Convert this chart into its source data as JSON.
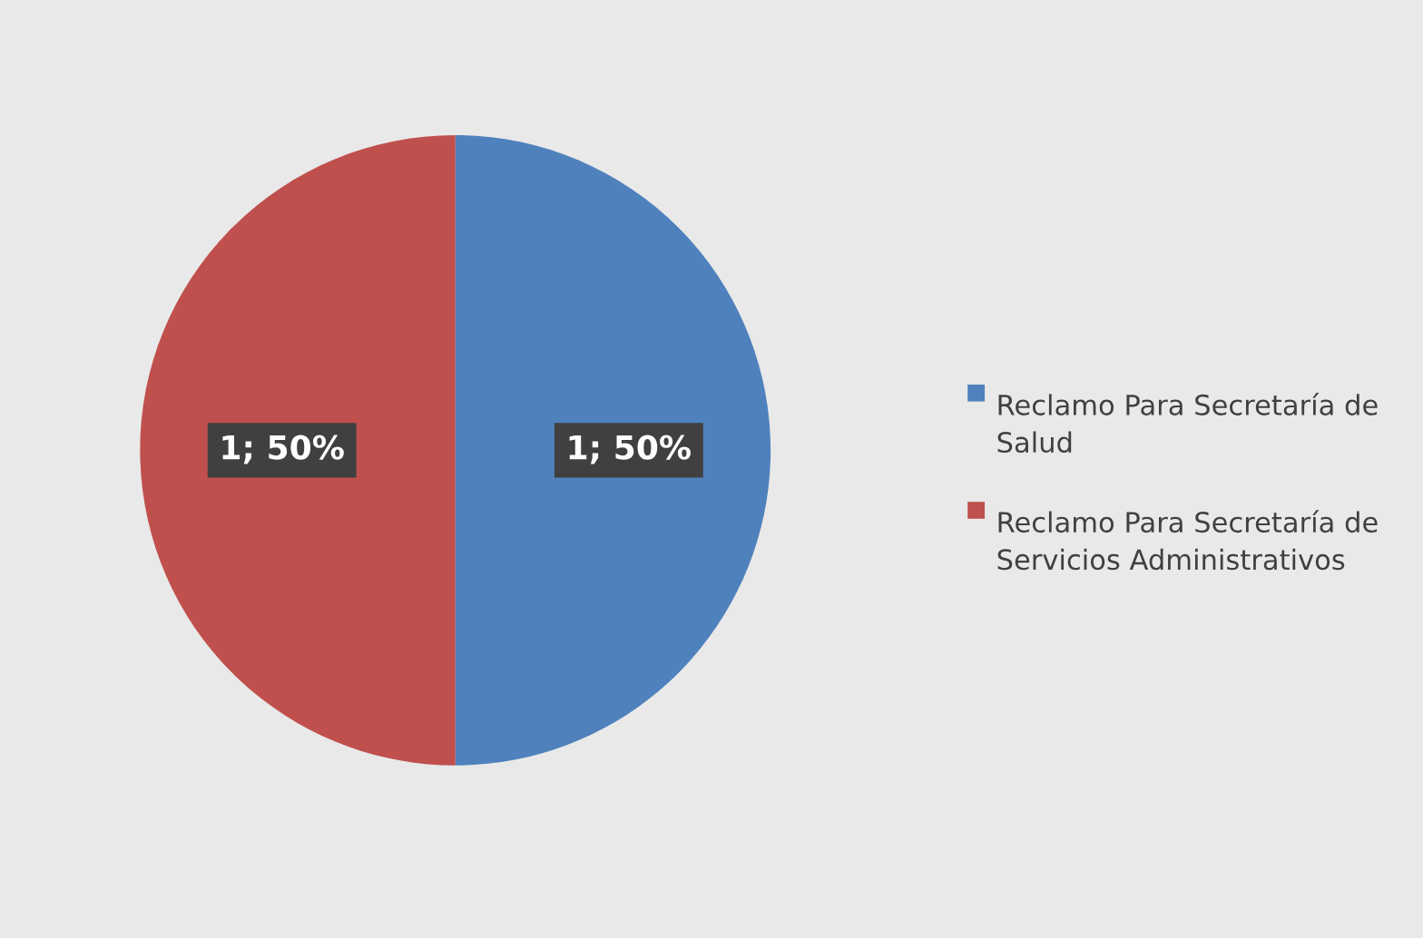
{
  "chart_data": {
    "type": "pie",
    "categories": [
      "Reclamo Para Secretaría de Salud",
      "Reclamo Para Secretaría de Servicios Administrativos"
    ],
    "values": [
      1,
      1
    ],
    "colors": [
      "#4f81bd",
      "#c0504d"
    ],
    "value_labels": [
      "1; 50%",
      "1; 50%"
    ],
    "legend": "right"
  }
}
